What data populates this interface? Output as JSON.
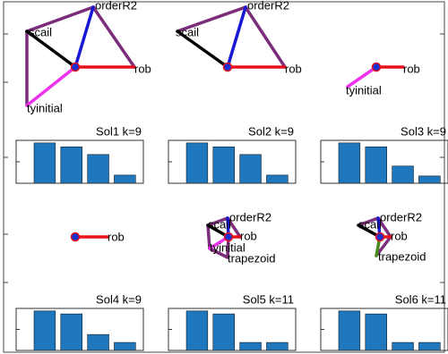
{
  "ylim": [
    0,
    1
  ],
  "bar_color": "#1f77bd",
  "panels": [
    {
      "title": "Sol1 k=9",
      "nodes": [
        "scail",
        "orderR2",
        "rob",
        "tyinitial"
      ],
      "values": [
        0.94,
        0.85,
        0.67,
        0.19
      ]
    },
    {
      "title": "Sol2 k=9",
      "nodes": [
        "scail",
        "orderR2",
        "rob"
      ],
      "values": [
        0.94,
        0.85,
        0.67,
        0.19
      ]
    },
    {
      "title": "Sol3 k=9",
      "nodes": [
        "rob",
        "tyinitial"
      ],
      "values": [
        0.94,
        0.85,
        0.4,
        0.17
      ]
    },
    {
      "title": "Sol4 k=9",
      "nodes": [
        "rob"
      ],
      "values": [
        0.94,
        0.87,
        0.38,
        0.19
      ]
    },
    {
      "title": "Sol5 k=11",
      "nodes": [
        "scail",
        "orderR2",
        "rob",
        "tyinitial",
        "trapezoid"
      ],
      "values": [
        0.94,
        0.87,
        0.19,
        0.19
      ]
    },
    {
      "title": "Sol6 k=11",
      "nodes": [
        "scail",
        "orderR2",
        "rob",
        "trapezoid"
      ],
      "values": [
        0.94,
        0.87,
        0.19,
        0.19
      ]
    }
  ]
}
